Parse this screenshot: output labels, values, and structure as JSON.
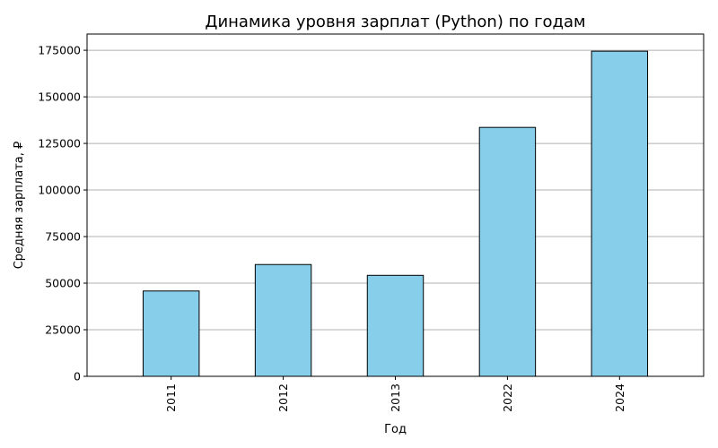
{
  "chart_data": {
    "type": "bar",
    "title": "Динамика уровня зарплат (Python) по годам",
    "xlabel": "Год",
    "ylabel": "Средняя зарплата, ₽",
    "categories": [
      "2011",
      "2012",
      "2013",
      "2022",
      "2024"
    ],
    "values": [
      45800,
      60000,
      54200,
      133600,
      174500
    ],
    "ylim": [
      0,
      183700
    ],
    "yticks": [
      0,
      25000,
      50000,
      75000,
      100000,
      125000,
      150000,
      175000
    ],
    "grid": "y",
    "x_tick_rotation": "vertical",
    "legend": "none",
    "colors": {
      "bar_fill": "#87ceeb",
      "bar_edge": "#000000",
      "grid": "#b0b0b0",
      "axis": "#000000"
    }
  }
}
